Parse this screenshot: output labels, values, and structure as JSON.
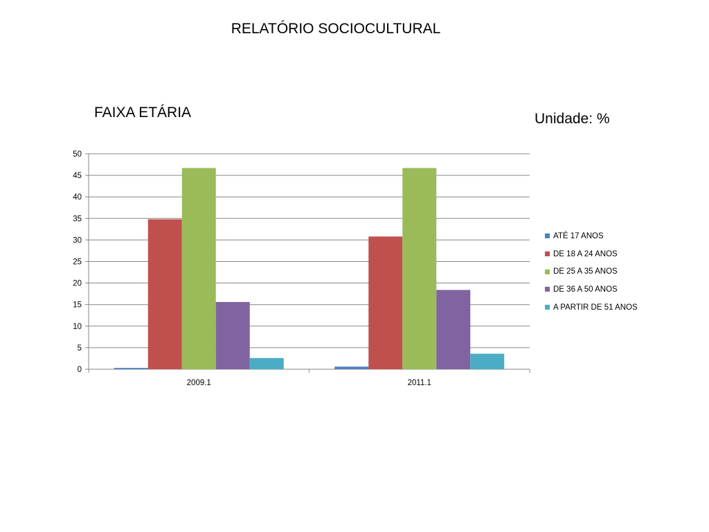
{
  "slide": {
    "title": "RELATÓRIO SOCIOCULTURAL"
  },
  "chart_data": {
    "type": "bar",
    "title": "FAIXA ETÁRIA",
    "unit": "Unidade: %",
    "categories": [
      "2009.1",
      "2011.1"
    ],
    "ylim": [
      0,
      50
    ],
    "yticks": [
      0,
      5,
      10,
      15,
      20,
      25,
      30,
      35,
      40,
      45,
      50
    ],
    "grid": true,
    "legend_position": "right",
    "series": [
      {
        "name": "ATÉ 17 ANOS",
        "values": [
          0.3,
          0.6
        ],
        "color": "#4F81BD"
      },
      {
        "name": "DE 18 A 24 ANOS",
        "values": [
          34.8,
          30.8
        ],
        "color": "#C0504D"
      },
      {
        "name": "DE 25 A 35 ANOS",
        "values": [
          46.7,
          46.7
        ],
        "color": "#9BBB59"
      },
      {
        "name": "DE 36 A 50 ANOS",
        "values": [
          15.6,
          18.4
        ],
        "color": "#8064A2"
      },
      {
        "name": "A PARTIR DE 51 ANOS",
        "values": [
          2.6,
          3.6
        ],
        "color": "#4BACC6"
      }
    ]
  }
}
